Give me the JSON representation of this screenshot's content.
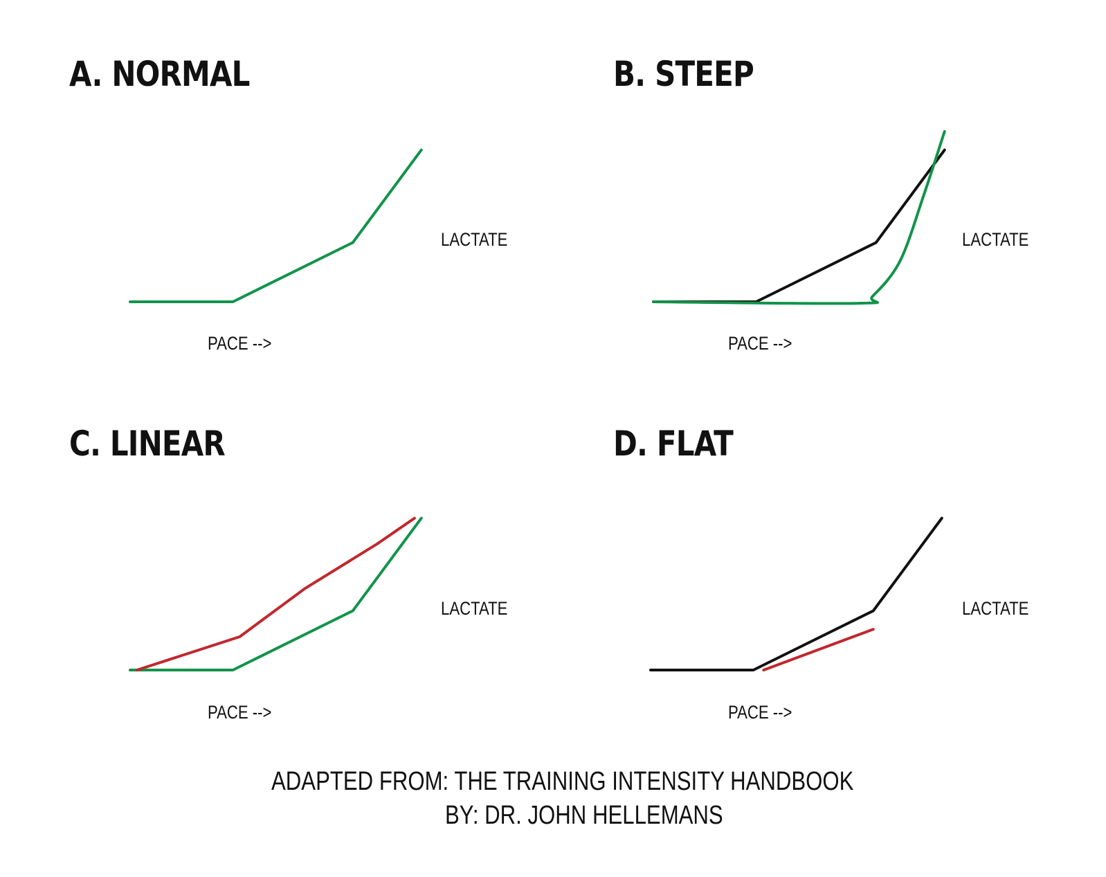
{
  "colors": {
    "green": "#12934a",
    "black": "#111111",
    "red": "#c1272d"
  },
  "chart_data": [
    {
      "type": "line",
      "title": "A. NORMAL",
      "xlabel": "PACE -->",
      "ylabel": "LACTATE",
      "series": [
        {
          "color": "green",
          "points": [
            [
              0,
              0
            ],
            [
              3,
              0
            ],
            [
              6.5,
              1.6
            ],
            [
              8.5,
              4.1
            ]
          ]
        }
      ]
    },
    {
      "type": "line",
      "title": "B. STEEP",
      "xlabel": "PACE -->",
      "ylabel": "LACTATE",
      "series": [
        {
          "color": "black",
          "points": [
            [
              0,
              0
            ],
            [
              3,
              0
            ],
            [
              6.5,
              1.6
            ],
            [
              8.5,
              4.1
            ]
          ]
        },
        {
          "color": "green",
          "points": [
            [
              0,
              0
            ],
            [
              6,
              -0.04
            ],
            [
              6.4,
              0.15
            ],
            [
              7.2,
              1.1
            ],
            [
              7.9,
              2.9
            ],
            [
              8.5,
              4.6
            ]
          ]
        }
      ]
    },
    {
      "type": "line",
      "title": "C. LINEAR",
      "xlabel": "PACE -->",
      "ylabel": "LACTATE",
      "series": [
        {
          "color": "green",
          "points": [
            [
              0,
              0
            ],
            [
              3,
              0
            ],
            [
              6.5,
              1.6
            ],
            [
              8.5,
              4.1
            ]
          ]
        },
        {
          "color": "red",
          "points": [
            [
              0.2,
              0
            ],
            [
              3.2,
              0.9
            ],
            [
              5.1,
              2.2
            ],
            [
              7.2,
              3.4
            ],
            [
              8.3,
              4.1
            ]
          ]
        }
      ]
    },
    {
      "type": "line",
      "title": "D. FLAT",
      "xlabel": "PACE -->",
      "ylabel": "LACTATE",
      "series": [
        {
          "color": "black",
          "points": [
            [
              0,
              0
            ],
            [
              3,
              0
            ],
            [
              6.5,
              1.6
            ],
            [
              8.5,
              4.1
            ]
          ]
        },
        {
          "color": "red",
          "points": [
            [
              3.3,
              0
            ],
            [
              6.5,
              1.1
            ]
          ]
        }
      ]
    }
  ],
  "credit": {
    "prefix": "ADAPTED FROM:",
    "source": " THE TRAINING INTENSITY HANDBOOK",
    "author": "BY: DR. JOHN HELLEMANS"
  }
}
